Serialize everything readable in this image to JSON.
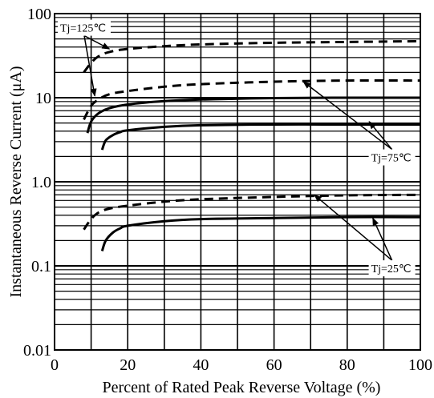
{
  "chart_data": {
    "type": "line",
    "xlabel": "Percent of Rated Peak Reverse Voltage (%)",
    "ylabel": "Instantaneous Reverse Current (μA)",
    "xlim": [
      0,
      100
    ],
    "ylim": [
      0.01,
      100
    ],
    "yscale": "log",
    "grid": true,
    "x_ticks": [
      {
        "value": 0,
        "label": "0"
      },
      {
        "value": 20,
        "label": "20"
      },
      {
        "value": 40,
        "label": "40"
      },
      {
        "value": 60,
        "label": "60"
      },
      {
        "value": 80,
        "label": "80"
      },
      {
        "value": 100,
        "label": "100"
      }
    ],
    "y_ticks": [
      {
        "value": 0.01,
        "label": "0.01"
      },
      {
        "value": 0.1,
        "label": "0.1"
      },
      {
        "value": 1,
        "label": "1.0"
      },
      {
        "value": 10,
        "label": "10"
      },
      {
        "value": 100,
        "label": "100"
      }
    ],
    "series": [
      {
        "name": "",
        "group": "Tj=125℃",
        "style": "dashed",
        "x": [
          8,
          10,
          12,
          15,
          20,
          30,
          40,
          60,
          80,
          100
        ],
        "y": [
          20,
          26,
          31,
          35,
          38,
          41,
          43,
          45,
          46,
          47
        ]
      },
      {
        "name": "",
        "group": "Tj=125℃",
        "style": "dashed",
        "x": [
          8,
          10,
          12,
          15,
          20,
          30,
          40,
          60,
          80,
          100
        ],
        "y": [
          5.5,
          8,
          9.5,
          11,
          12,
          13.5,
          14.5,
          15.5,
          16,
          16
        ]
      },
      {
        "name": "",
        "group": "Tj=75℃",
        "style": "solid",
        "x": [
          9,
          10,
          12,
          15,
          20,
          30,
          40,
          60,
          80,
          100
        ],
        "y": [
          3.8,
          5.2,
          6.5,
          7.5,
          8.3,
          9.1,
          9.5,
          9.9,
          10,
          10
        ]
      },
      {
        "name": "",
        "group": "Tj=75℃",
        "style": "solid",
        "x": [
          13,
          14,
          16,
          18,
          20,
          30,
          40,
          60,
          80,
          100
        ],
        "y": [
          2.4,
          3.1,
          3.6,
          3.9,
          4.1,
          4.5,
          4.7,
          4.8,
          4.8,
          4.8
        ]
      },
      {
        "name": "",
        "group": "Tj=25℃",
        "style": "dashed",
        "x": [
          8,
          10,
          12,
          15,
          20,
          30,
          40,
          60,
          80,
          100
        ],
        "y": [
          0.27,
          0.36,
          0.43,
          0.48,
          0.52,
          0.58,
          0.62,
          0.66,
          0.69,
          0.7
        ]
      },
      {
        "name": "",
        "group": "Tj=25℃",
        "style": "solid",
        "x": [
          13,
          14,
          16,
          18,
          20,
          30,
          40,
          60,
          80,
          100
        ],
        "y": [
          0.15,
          0.2,
          0.25,
          0.28,
          0.3,
          0.34,
          0.36,
          0.37,
          0.38,
          0.38
        ]
      }
    ],
    "annotations": [
      {
        "text": "Tj=125℃",
        "box_x": 0,
        "box_y": 68,
        "arrows": [
          [
            15,
            38
          ],
          [
            11,
            10.5
          ]
        ]
      },
      {
        "text": "Tj=75℃",
        "box_x": 85,
        "box_y": 1.95,
        "arrows": [
          [
            68,
            15.5
          ],
          [
            86,
            5.2
          ]
        ]
      },
      {
        "text": "Tj=25℃",
        "box_x": 85,
        "box_y": 0.0935,
        "arrows": [
          [
            71,
            0.7
          ],
          [
            87,
            0.37
          ]
        ]
      }
    ]
  }
}
